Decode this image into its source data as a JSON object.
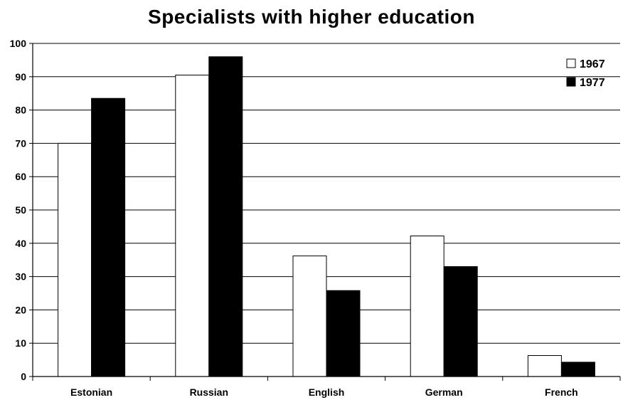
{
  "chart_data": {
    "type": "bar",
    "title": "Specialists with higher education",
    "xlabel": "",
    "ylabel": "",
    "categories": [
      "Estonian",
      "Russian",
      "English",
      "German",
      "French"
    ],
    "series": [
      {
        "name": "1967",
        "values": [
          70,
          90.5,
          36.2,
          42.2,
          6.3
        ],
        "color": "#ffffff"
      },
      {
        "name": "1977",
        "values": [
          83.5,
          96,
          25.8,
          33,
          4.3
        ],
        "color": "#000000"
      }
    ],
    "ylim": [
      0,
      100
    ],
    "yticks": [
      0,
      10,
      20,
      30,
      40,
      50,
      60,
      70,
      80,
      90,
      100
    ],
    "grid": true,
    "legend_position": "top-right"
  }
}
